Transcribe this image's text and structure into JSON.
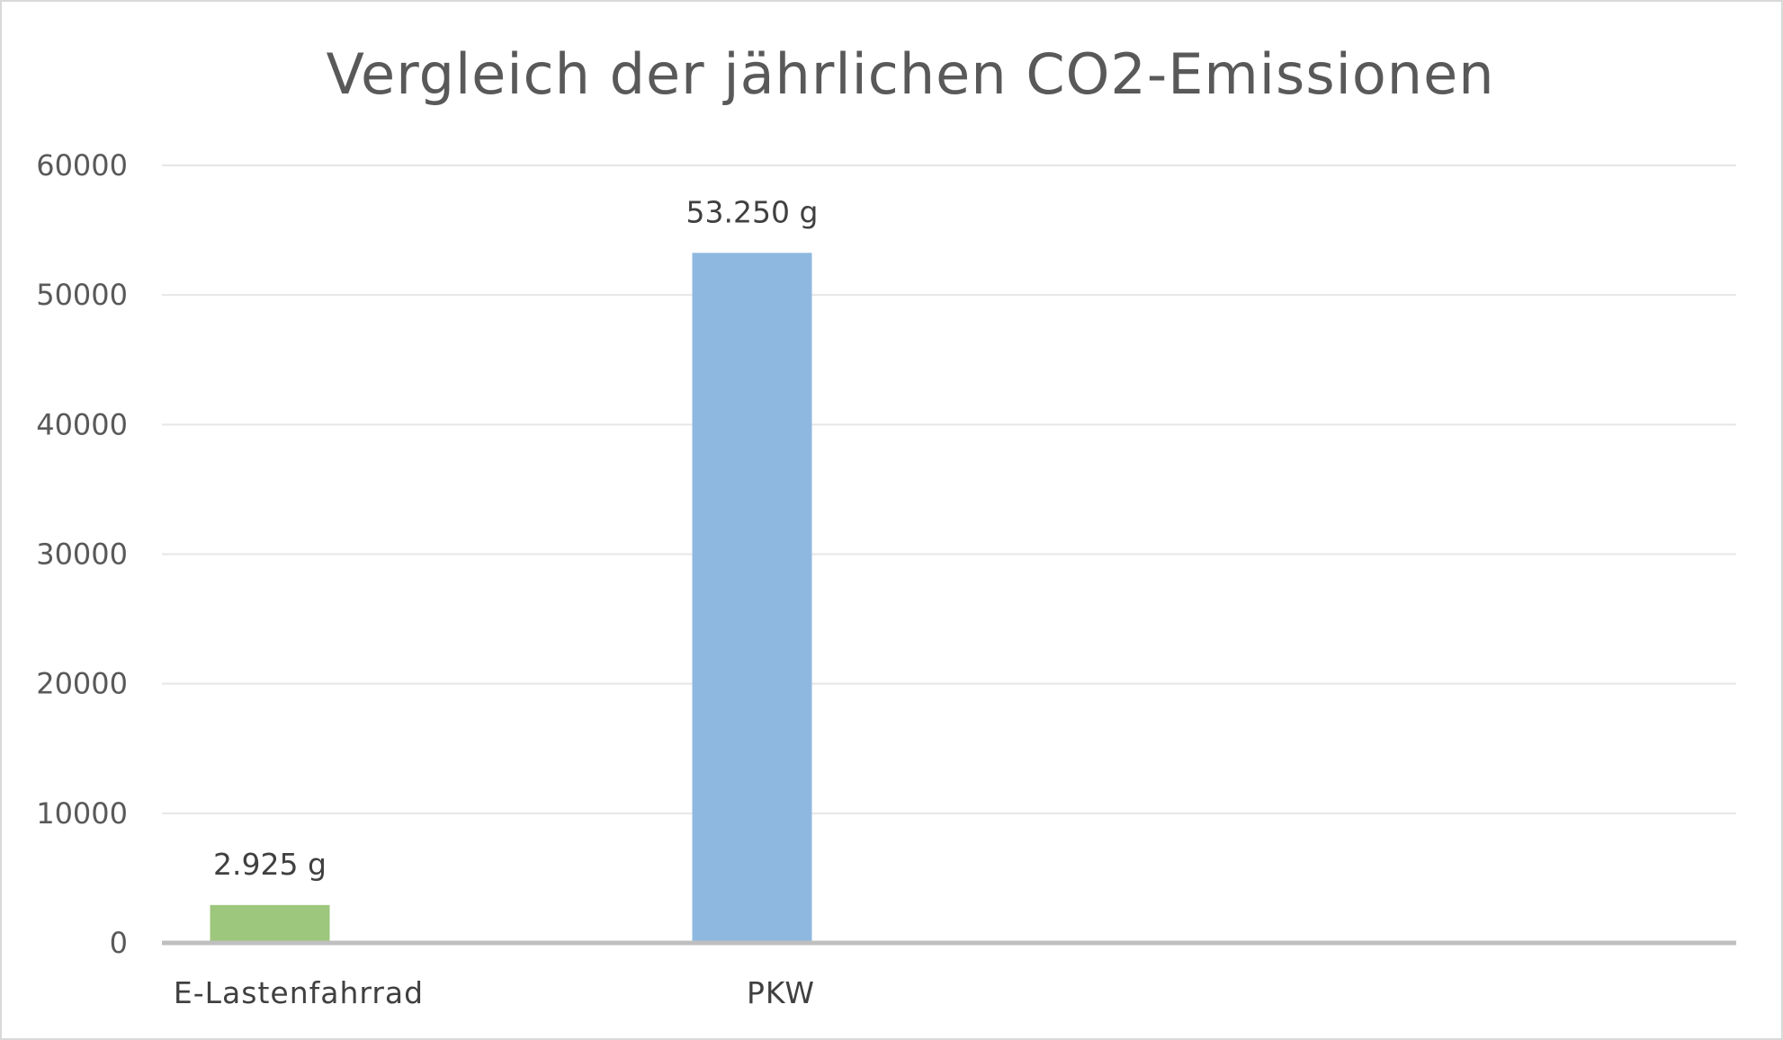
{
  "chart_data": {
    "type": "bar",
    "title": "Vergleich der jährlichen CO2-Emissionen",
    "categories": [
      "E-Lastenfahrrad",
      "PKW"
    ],
    "values": [
      2925,
      53250
    ],
    "data_labels": [
      "2.925 g",
      "53.250 g"
    ],
    "colors": [
      "#9dc77c",
      "#8eb8e0"
    ],
    "ylim": [
      0,
      60000
    ],
    "yticks": [
      0,
      10000,
      20000,
      30000,
      40000,
      50000,
      60000
    ],
    "ytick_labels": [
      "0",
      "10000",
      "20000",
      "30000",
      "40000",
      "50000",
      "60000"
    ],
    "xlabel": "",
    "ylabel": "",
    "grid": true,
    "legend": "none"
  },
  "style": {
    "gridline_color": "#e6e6e6",
    "axis_color": "#bfbfbf"
  }
}
